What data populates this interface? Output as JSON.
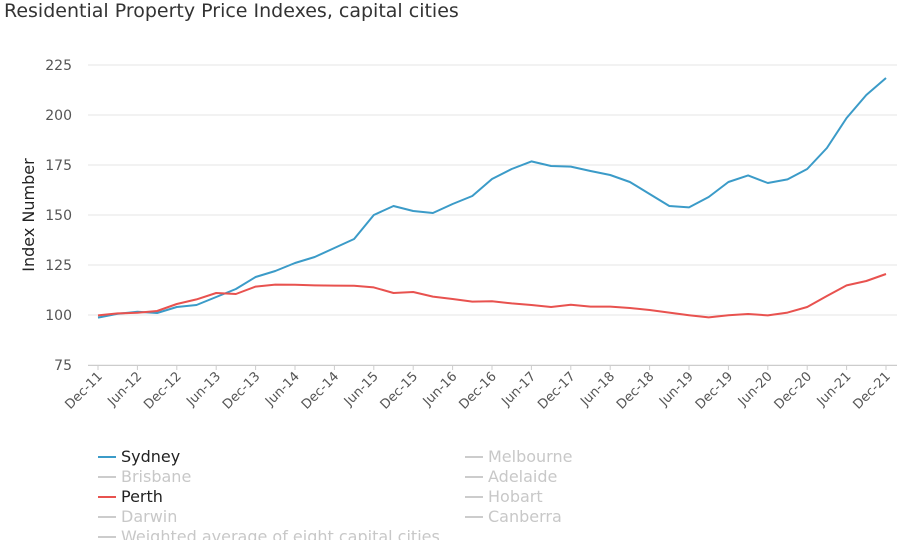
{
  "title": "Residential Property Price Indexes, capital cities",
  "chart_data": {
    "type": "line",
    "title": "Residential Property Price Indexes, capital cities",
    "xlabel": "",
    "ylabel": "Index Number",
    "ylim": [
      75,
      225
    ],
    "yticks": [
      75,
      100,
      125,
      150,
      175,
      200,
      225
    ],
    "grid": true,
    "legend_position": "bottom",
    "x": [
      "Dec-11",
      "Mar-12",
      "Jun-12",
      "Sep-12",
      "Dec-12",
      "Mar-13",
      "Jun-13",
      "Sep-13",
      "Dec-13",
      "Mar-14",
      "Jun-14",
      "Sep-14",
      "Dec-14",
      "Mar-15",
      "Jun-15",
      "Sep-15",
      "Dec-15",
      "Mar-16",
      "Jun-16",
      "Sep-16",
      "Dec-16",
      "Mar-17",
      "Jun-17",
      "Sep-17",
      "Dec-17",
      "Mar-18",
      "Jun-18",
      "Sep-18",
      "Dec-18",
      "Mar-19",
      "Jun-19",
      "Sep-19",
      "Dec-19",
      "Mar-20",
      "Jun-20",
      "Sep-20",
      "Dec-20",
      "Mar-21",
      "Jun-21",
      "Sep-21",
      "Dec-21"
    ],
    "x_tick_labels": [
      "Dec-11",
      "Jun-12",
      "Dec-12",
      "Jun-13",
      "Dec-13",
      "Jun-14",
      "Dec-14",
      "Jun-15",
      "Dec-15",
      "Jun-16",
      "Dec-16",
      "Jun-17",
      "Dec-17",
      "Jun-18",
      "Dec-18",
      "Jun-19",
      "Dec-19",
      "Jun-20",
      "Dec-20",
      "Jun-21",
      "Dec-21"
    ],
    "series": [
      {
        "name": "Sydney",
        "color": "#3b9bc8",
        "visible": true,
        "values": [
          98.7,
          100.6,
          101.6,
          101.0,
          104.0,
          105.0,
          109.0,
          113.0,
          119.0,
          122.0,
          126.0,
          129.0,
          133.5,
          138.0,
          150.0,
          154.5,
          152.0,
          151.0,
          155.5,
          159.5,
          168.0,
          173.0,
          176.8,
          174.5,
          174.2,
          172.0,
          170.0,
          166.5,
          160.5,
          154.5,
          153.8,
          159.0,
          166.5,
          169.8,
          166.0,
          167.8,
          173.0,
          183.5,
          198.5,
          210.0,
          218.5
        ]
      },
      {
        "name": "Perth",
        "color": "#e8524f",
        "visible": true,
        "values": [
          99.8,
          100.8,
          101.1,
          102.0,
          105.5,
          107.8,
          111.0,
          110.5,
          114.2,
          115.2,
          115.1,
          114.8,
          114.7,
          114.6,
          113.8,
          111.0,
          111.5,
          109.2,
          108.0,
          106.7,
          106.9,
          105.8,
          105.0,
          104.0,
          105.1,
          104.2,
          104.2,
          103.5,
          102.5,
          101.2,
          99.9,
          98.8,
          99.9,
          100.5,
          99.8,
          101.2,
          104.0,
          109.5,
          114.8,
          117.0,
          120.5
        ]
      }
    ]
  },
  "legend": [
    {
      "label": "Sydney",
      "color": "#3b9bc8",
      "active": true
    },
    {
      "label": "Melbourne",
      "color": "#cccccc",
      "active": false
    },
    {
      "label": "Brisbane",
      "color": "#cccccc",
      "active": false
    },
    {
      "label": "Adelaide",
      "color": "#cccccc",
      "active": false
    },
    {
      "label": "Perth",
      "color": "#e8524f",
      "active": true
    },
    {
      "label": "Hobart",
      "color": "#cccccc",
      "active": false
    },
    {
      "label": "Darwin",
      "color": "#cccccc",
      "active": false
    },
    {
      "label": "Canberra",
      "color": "#cccccc",
      "active": false
    },
    {
      "label": "Weighted average of eight capital cities",
      "color": "#cccccc",
      "active": false
    }
  ],
  "colors": {
    "grid": "#e6e6e6",
    "axis_text": "#555555",
    "inactive": "#c8c8c8"
  }
}
